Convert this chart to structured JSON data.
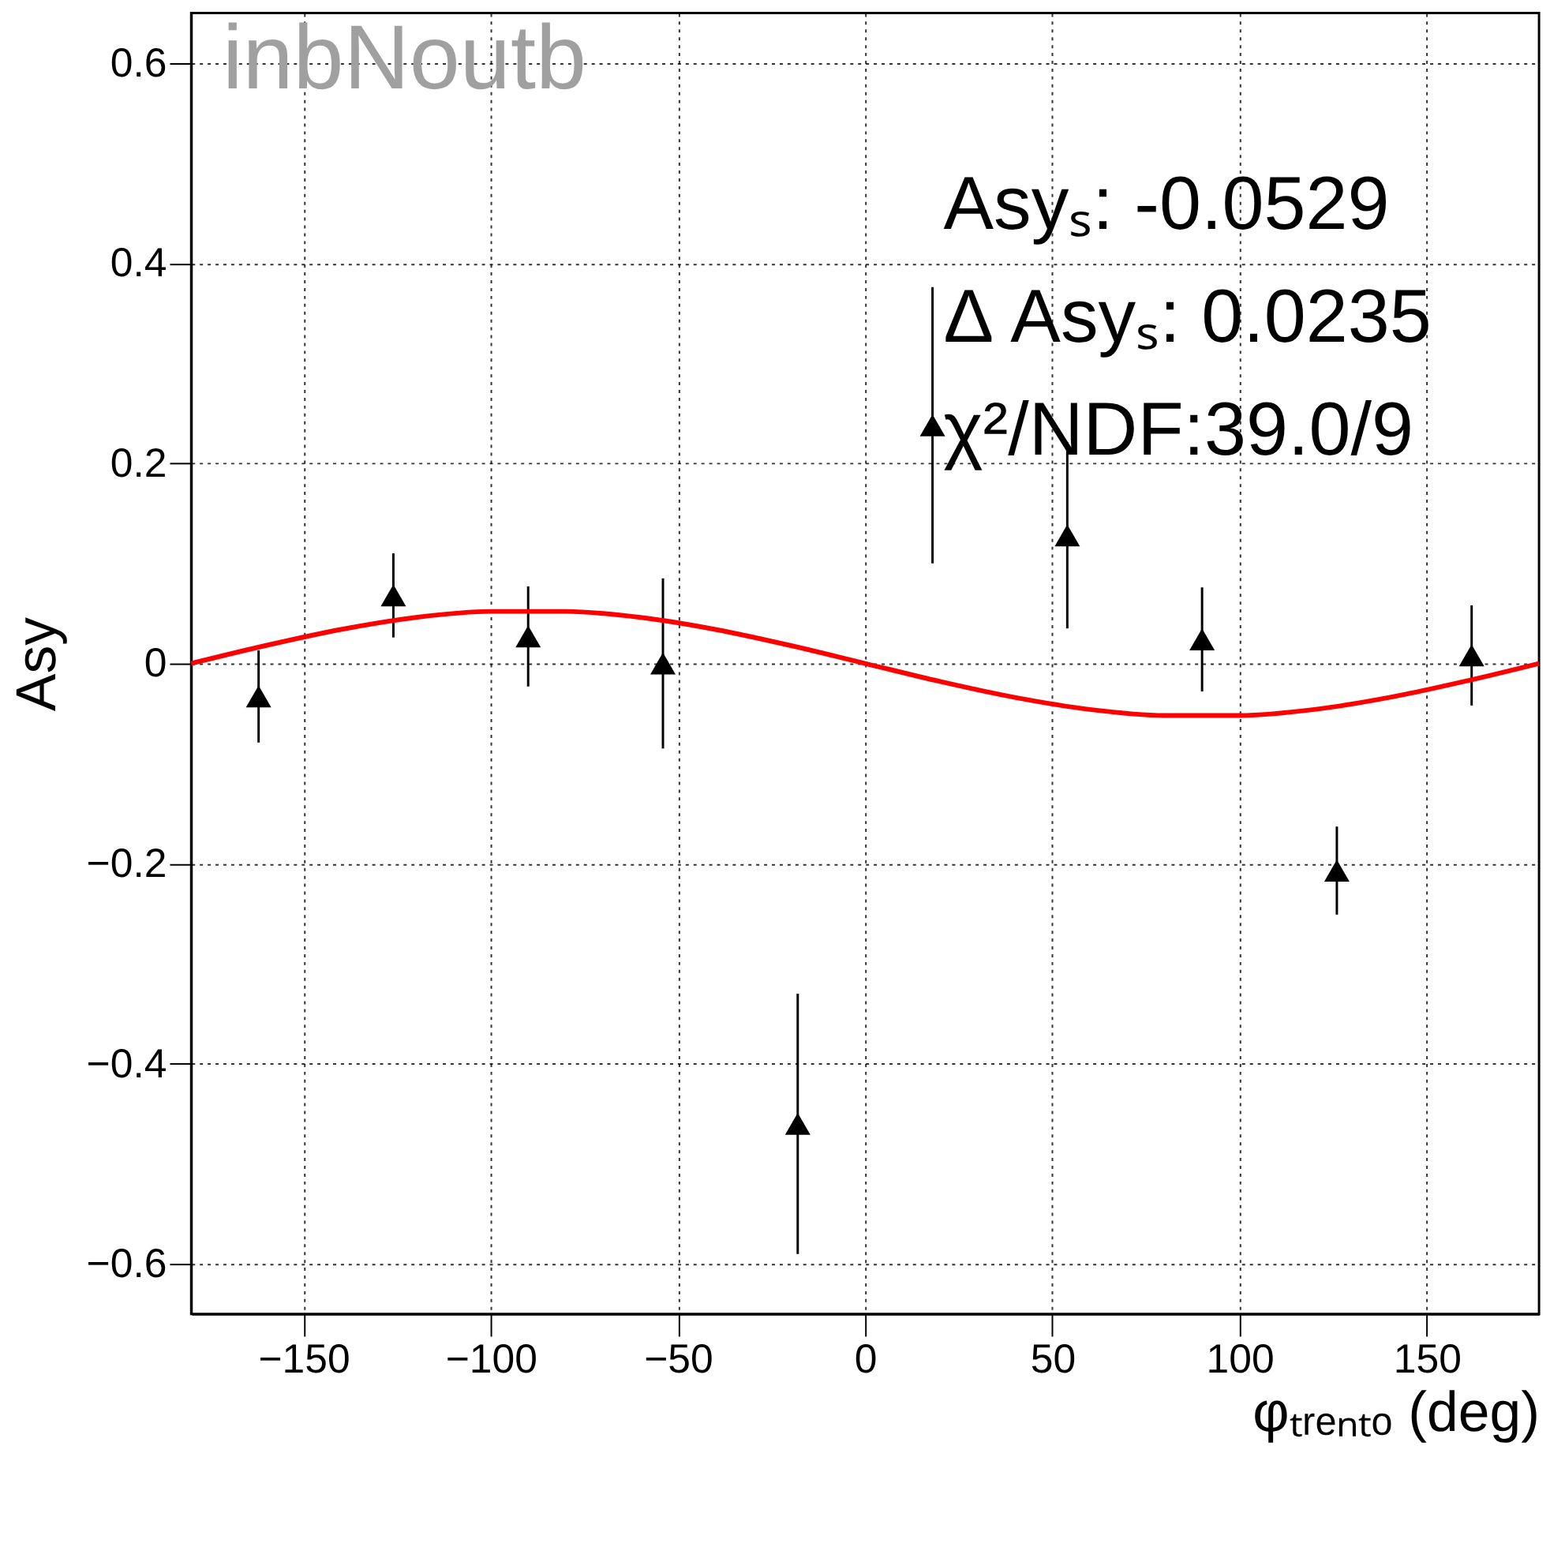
{
  "chart_data": {
    "type": "scatter",
    "xlabel": "φₜᵣₑₙₜₒ (deg)",
    "ylabel": "Asy",
    "annotations": [
      "inbNoutb",
      "Asyₛ: -0.0529",
      "Δ Asyₛ: 0.0235",
      "χ²/NDF:39.0/9"
    ],
    "xlim": [
      -180,
      180
    ],
    "xticks": [
      {
        "value": -150,
        "label": "−150"
      },
      {
        "value": -100,
        "label": "−100"
      },
      {
        "value": -50,
        "label": "−50"
      },
      0,
      50,
      100,
      150
    ],
    "ylim": [
      -0.65,
      0.65
    ],
    "yticks": [
      {
        "value": -0.6,
        "label": "−0.6"
      },
      {
        "value": -0.4,
        "label": "−0.4"
      },
      {
        "value": -0.2,
        "label": "−0.2"
      },
      0,
      0.2,
      0.4,
      0.6
    ],
    "grid": true,
    "series": [
      {
        "color": "#000000",
        "marker": "triangle",
        "x": [
          -162,
          -126,
          -90,
          -54,
          -18,
          18,
          54,
          90,
          126,
          162
        ],
        "values": [
          -0.033,
          0.068,
          0.027,
          0.0,
          -0.46,
          0.238,
          0.128,
          0.024,
          -0.207,
          0.008
        ],
        "errors": [
          0.046,
          0.042,
          0.05,
          0.085,
          0.13,
          0.138,
          0.093,
          0.052,
          0.044,
          0.05
        ]
      },
      {
        "type": "line",
        "color": "#ff0000",
        "marker": "none",
        "x": [
          -180,
          -160,
          -140,
          -120,
          -100,
          -80,
          -60,
          -40,
          -20,
          0,
          20,
          40,
          60,
          80,
          100,
          120,
          140,
          160,
          180
        ],
        "values": [
          0,
          0.018,
          0.034,
          0.046,
          0.052,
          0.052,
          0.046,
          0.034,
          0.018,
          0,
          -0.018,
          -0.034,
          -0.046,
          -0.052,
          -0.052,
          -0.046,
          -0.034,
          -0.018,
          0
        ]
      }
    ]
  }
}
